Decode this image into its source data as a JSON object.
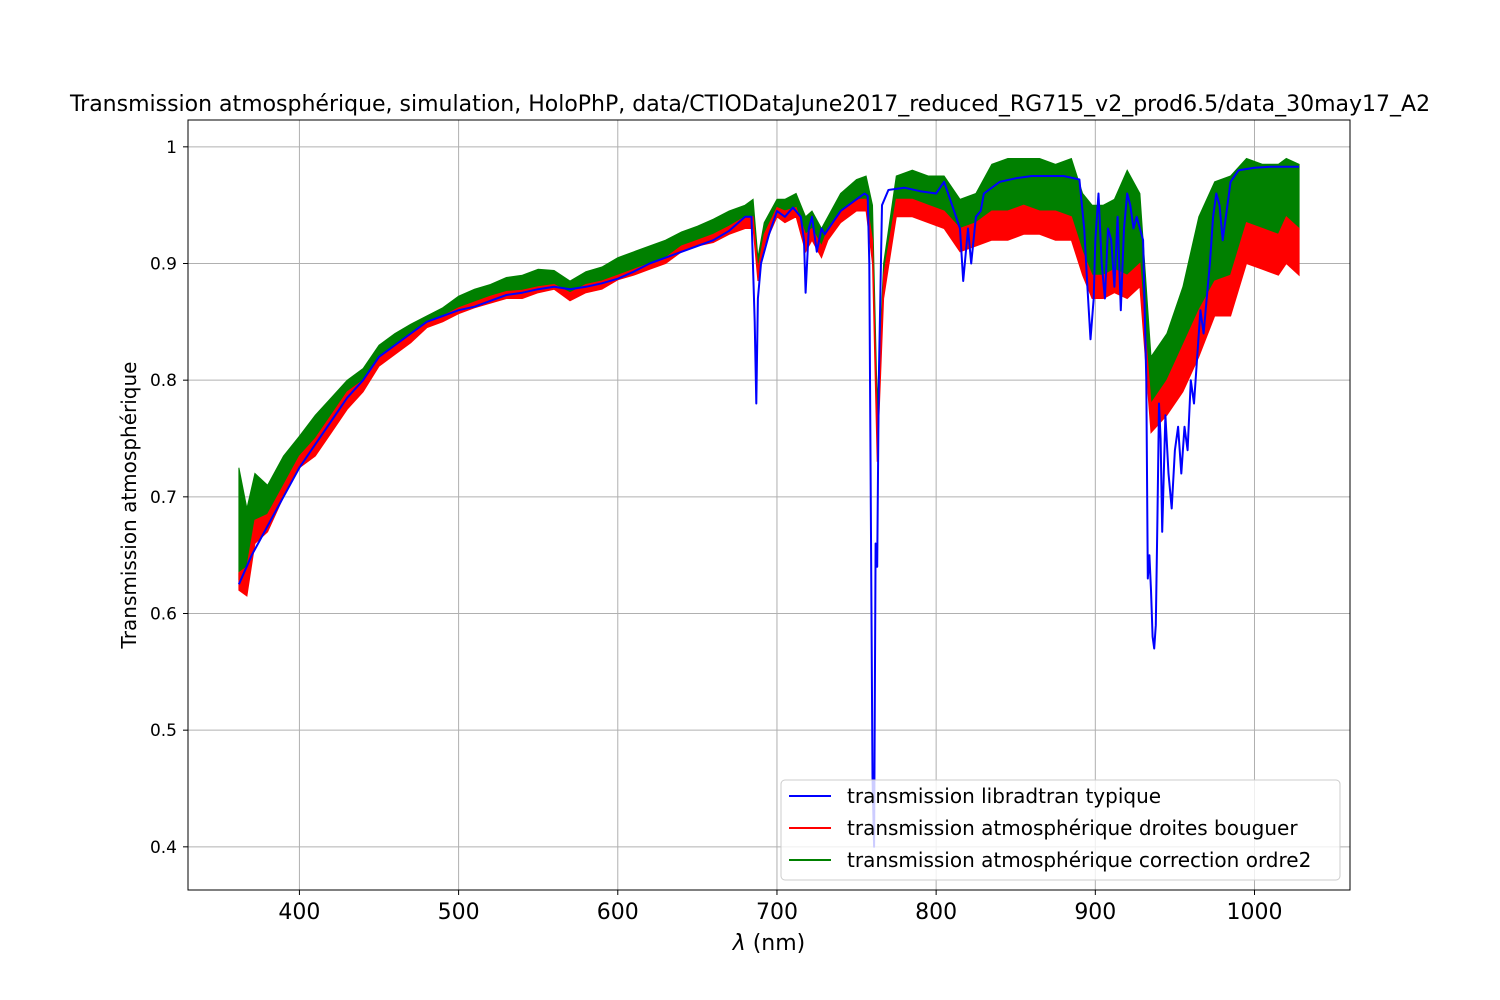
{
  "chart_data": {
    "type": "line",
    "title": "Transmission atmosphérique, simulation, HoloPhP, data/CTIODataJune2017_reduced_RG715_v2_prod6.5/data_30may17_A2",
    "xlabel_prefix": "λ",
    "xlabel_suffix": " (nm)",
    "ylabel": "Transmission atmosphérique",
    "xlim": [
      330,
      1060
    ],
    "ylim": [
      0.363,
      1.023
    ],
    "xticks": [
      400,
      500,
      600,
      700,
      800,
      900,
      1000
    ],
    "yticks": [
      0.4,
      0.5,
      0.6,
      0.7,
      0.8,
      0.9,
      1.0
    ],
    "grid": true,
    "legend_position": "lower right",
    "series": [
      {
        "name": "transmission libradtran typique",
        "color": "#0000ff",
        "kind": "line",
        "x": [
          362,
          370,
          380,
          390,
          400,
          410,
          420,
          430,
          440,
          450,
          460,
          470,
          480,
          490,
          500,
          510,
          520,
          530,
          540,
          550,
          560,
          570,
          580,
          590,
          600,
          610,
          620,
          630,
          640,
          650,
          660,
          670,
          680,
          684,
          686,
          687,
          688,
          690,
          695,
          700,
          705,
          710,
          715,
          717,
          718,
          720,
          722,
          725,
          728,
          730,
          740,
          750,
          755,
          757,
          758,
          760,
          761,
          762,
          763,
          764,
          766,
          770,
          780,
          790,
          800,
          805,
          810,
          815,
          817,
          820,
          822,
          825,
          828,
          830,
          840,
          850,
          860,
          870,
          880,
          890,
          893,
          895,
          897,
          899,
          900,
          902,
          904,
          906,
          908,
          910,
          912,
          914,
          916,
          918,
          920,
          922,
          924,
          926,
          928,
          930,
          932,
          933,
          934,
          935,
          936,
          937,
          938,
          939,
          940,
          941,
          942,
          944,
          946,
          948,
          950,
          952,
          954,
          956,
          958,
          960,
          962,
          964,
          966,
          968,
          970,
          972,
          974,
          976,
          978,
          980,
          985,
          990,
          1000,
          1010,
          1020,
          1028
        ],
        "y": [
          0.625,
          0.65,
          0.675,
          0.7,
          0.725,
          0.745,
          0.765,
          0.785,
          0.8,
          0.82,
          0.83,
          0.84,
          0.85,
          0.855,
          0.86,
          0.863,
          0.868,
          0.873,
          0.875,
          0.878,
          0.88,
          0.878,
          0.88,
          0.883,
          0.887,
          0.893,
          0.9,
          0.905,
          0.91,
          0.915,
          0.92,
          0.928,
          0.94,
          0.94,
          0.85,
          0.78,
          0.87,
          0.9,
          0.925,
          0.945,
          0.94,
          0.948,
          0.94,
          0.92,
          0.875,
          0.93,
          0.94,
          0.91,
          0.93,
          0.925,
          0.945,
          0.955,
          0.96,
          0.958,
          0.9,
          0.46,
          0.4,
          0.66,
          0.64,
          0.8,
          0.95,
          0.963,
          0.965,
          0.962,
          0.96,
          0.97,
          0.95,
          0.93,
          0.885,
          0.93,
          0.9,
          0.94,
          0.945,
          0.96,
          0.97,
          0.973,
          0.975,
          0.975,
          0.975,
          0.972,
          0.93,
          0.88,
          0.835,
          0.87,
          0.92,
          0.96,
          0.9,
          0.87,
          0.93,
          0.92,
          0.88,
          0.94,
          0.86,
          0.93,
          0.96,
          0.95,
          0.93,
          0.94,
          0.93,
          0.92,
          0.8,
          0.63,
          0.65,
          0.62,
          0.58,
          0.57,
          0.59,
          0.68,
          0.78,
          0.75,
          0.67,
          0.77,
          0.72,
          0.69,
          0.74,
          0.76,
          0.72,
          0.76,
          0.74,
          0.8,
          0.78,
          0.82,
          0.86,
          0.84,
          0.87,
          0.9,
          0.94,
          0.96,
          0.95,
          0.92,
          0.97,
          0.98,
          0.982,
          0.983,
          0.983,
          0.983
        ]
      },
      {
        "name": "transmission atmosphérique droites bouguer",
        "color": "#ff0000",
        "kind": "band",
        "x": [
          362,
          367,
          372,
          380,
          390,
          400,
          410,
          420,
          430,
          440,
          450,
          460,
          470,
          480,
          490,
          500,
          510,
          520,
          530,
          540,
          550,
          560,
          570,
          580,
          590,
          600,
          610,
          620,
          630,
          640,
          650,
          660,
          670,
          680,
          685,
          688,
          692,
          700,
          705,
          712,
          718,
          722,
          728,
          732,
          740,
          750,
          756,
          760,
          763,
          767,
          775,
          785,
          795,
          805,
          815,
          825,
          835,
          845,
          855,
          865,
          875,
          885,
          892,
          898,
          905,
          912,
          920,
          928,
          935,
          945,
          955,
          965,
          975,
          985,
          995,
          1005,
          1015,
          1020,
          1028
        ],
        "low": [
          0.62,
          0.615,
          0.66,
          0.67,
          0.7,
          0.725,
          0.735,
          0.755,
          0.775,
          0.79,
          0.812,
          0.822,
          0.832,
          0.845,
          0.85,
          0.857,
          0.862,
          0.866,
          0.87,
          0.87,
          0.875,
          0.878,
          0.868,
          0.875,
          0.878,
          0.886,
          0.89,
          0.895,
          0.9,
          0.91,
          0.915,
          0.918,
          0.925,
          0.93,
          0.93,
          0.885,
          0.915,
          0.94,
          0.935,
          0.94,
          0.91,
          0.92,
          0.905,
          0.92,
          0.935,
          0.945,
          0.945,
          0.9,
          0.73,
          0.87,
          0.94,
          0.94,
          0.935,
          0.93,
          0.91,
          0.915,
          0.92,
          0.92,
          0.925,
          0.925,
          0.92,
          0.92,
          0.89,
          0.87,
          0.87,
          0.875,
          0.87,
          0.88,
          0.755,
          0.77,
          0.79,
          0.82,
          0.855,
          0.855,
          0.9,
          0.895,
          0.89,
          0.9,
          0.89
        ],
        "high": [
          0.635,
          0.64,
          0.68,
          0.685,
          0.71,
          0.735,
          0.75,
          0.77,
          0.79,
          0.8,
          0.82,
          0.83,
          0.84,
          0.85,
          0.855,
          0.862,
          0.867,
          0.872,
          0.876,
          0.877,
          0.88,
          0.882,
          0.875,
          0.882,
          0.885,
          0.89,
          0.895,
          0.9,
          0.905,
          0.915,
          0.92,
          0.925,
          0.932,
          0.94,
          0.94,
          0.895,
          0.925,
          0.948,
          0.945,
          0.948,
          0.925,
          0.93,
          0.915,
          0.93,
          0.945,
          0.955,
          0.955,
          0.92,
          0.76,
          0.89,
          0.955,
          0.955,
          0.95,
          0.945,
          0.93,
          0.935,
          0.945,
          0.945,
          0.95,
          0.945,
          0.945,
          0.94,
          0.91,
          0.89,
          0.89,
          0.895,
          0.89,
          0.9,
          0.78,
          0.8,
          0.83,
          0.86,
          0.885,
          0.89,
          0.935,
          0.93,
          0.925,
          0.94,
          0.93
        ]
      },
      {
        "name": "transmission atmosphérique correction ordre2",
        "color": "#008000",
        "kind": "band",
        "x": [
          362,
          367,
          372,
          380,
          390,
          400,
          410,
          420,
          430,
          440,
          450,
          460,
          470,
          480,
          490,
          500,
          510,
          520,
          530,
          540,
          550,
          560,
          570,
          580,
          590,
          600,
          610,
          620,
          630,
          640,
          650,
          660,
          670,
          680,
          685,
          688,
          692,
          700,
          705,
          712,
          718,
          722,
          728,
          732,
          740,
          750,
          756,
          760,
          763,
          767,
          775,
          785,
          795,
          805,
          815,
          825,
          835,
          845,
          855,
          865,
          875,
          885,
          892,
          898,
          905,
          912,
          920,
          928,
          935,
          945,
          955,
          965,
          975,
          985,
          995,
          1005,
          1015,
          1020,
          1028
        ],
        "low": [
          0.63,
          0.64,
          0.68,
          0.685,
          0.71,
          0.735,
          0.75,
          0.77,
          0.79,
          0.8,
          0.82,
          0.83,
          0.84,
          0.85,
          0.855,
          0.862,
          0.867,
          0.872,
          0.876,
          0.877,
          0.88,
          0.882,
          0.875,
          0.882,
          0.885,
          0.89,
          0.895,
          0.9,
          0.905,
          0.915,
          0.92,
          0.925,
          0.932,
          0.94,
          0.94,
          0.895,
          0.925,
          0.948,
          0.945,
          0.948,
          0.925,
          0.93,
          0.915,
          0.93,
          0.945,
          0.955,
          0.955,
          0.92,
          0.76,
          0.89,
          0.955,
          0.955,
          0.95,
          0.945,
          0.93,
          0.935,
          0.945,
          0.945,
          0.95,
          0.945,
          0.945,
          0.94,
          0.91,
          0.89,
          0.89,
          0.895,
          0.89,
          0.9,
          0.78,
          0.8,
          0.83,
          0.86,
          0.885,
          0.89,
          0.935,
          0.93,
          0.925,
          0.94,
          0.93
        ],
        "high": [
          0.725,
          0.69,
          0.72,
          0.71,
          0.735,
          0.752,
          0.77,
          0.785,
          0.8,
          0.81,
          0.83,
          0.84,
          0.848,
          0.855,
          0.862,
          0.872,
          0.878,
          0.882,
          0.888,
          0.89,
          0.895,
          0.894,
          0.885,
          0.893,
          0.897,
          0.905,
          0.91,
          0.915,
          0.92,
          0.927,
          0.932,
          0.938,
          0.945,
          0.95,
          0.955,
          0.905,
          0.935,
          0.955,
          0.955,
          0.96,
          0.94,
          0.945,
          0.93,
          0.94,
          0.96,
          0.972,
          0.975,
          0.95,
          0.78,
          0.9,
          0.975,
          0.98,
          0.975,
          0.975,
          0.955,
          0.96,
          0.985,
          0.99,
          0.99,
          0.99,
          0.985,
          0.99,
          0.96,
          0.95,
          0.95,
          0.955,
          0.98,
          0.96,
          0.82,
          0.84,
          0.88,
          0.94,
          0.97,
          0.975,
          0.99,
          0.985,
          0.985,
          0.99,
          0.985
        ]
      }
    ]
  }
}
